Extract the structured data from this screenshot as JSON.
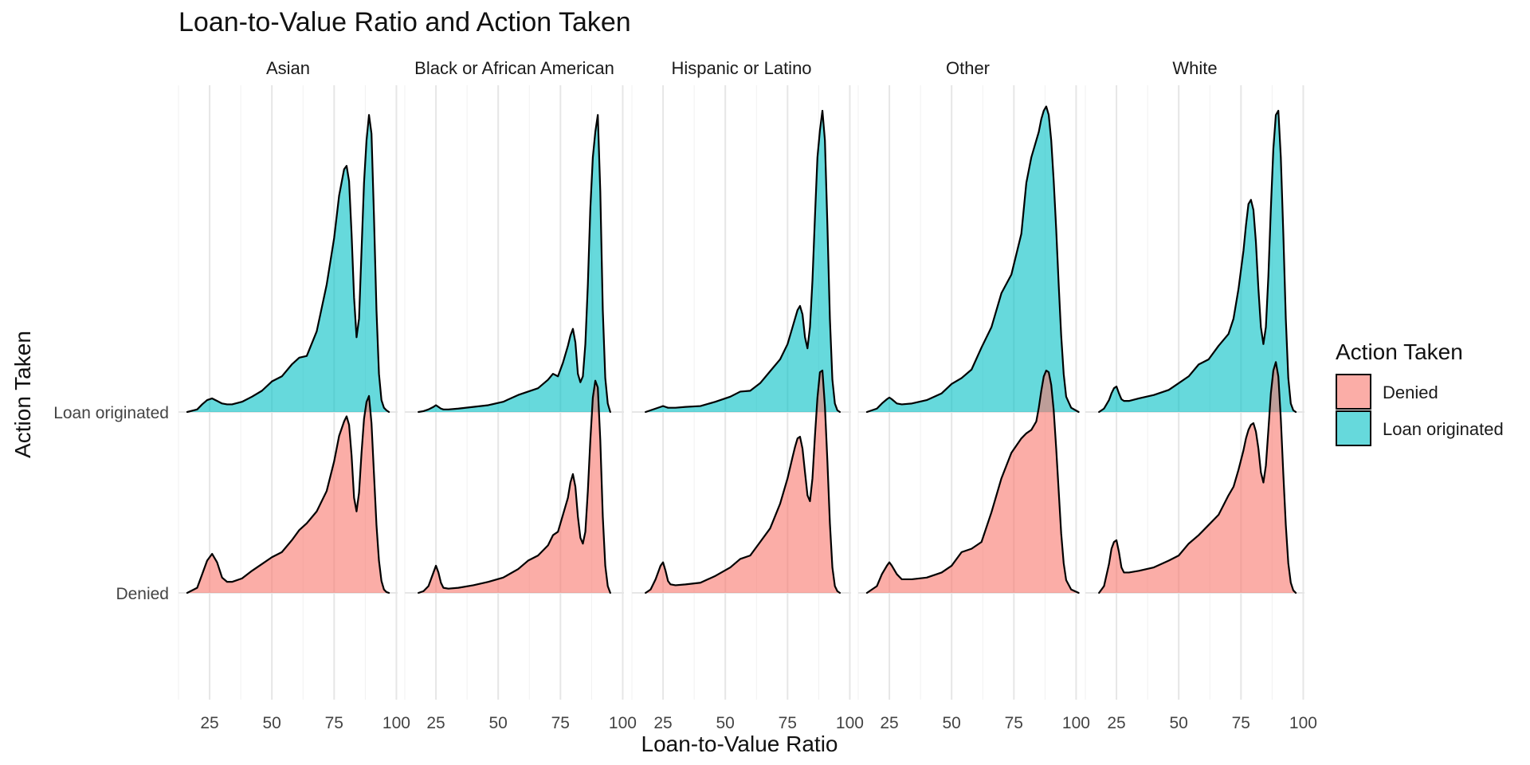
{
  "chart_data": {
    "type": "area",
    "title": "Loan-to-Value Ratio and Action Taken",
    "xlabel": "Loan-to-Value Ratio",
    "ylabel": "Action Taken",
    "x_ticks": [
      25,
      50,
      75,
      100
    ],
    "xlim": [
      12.5,
      100.5
    ],
    "y_categories": [
      "Denied",
      "Loan originated"
    ],
    "legend": {
      "title": "Action Taken",
      "position": "right",
      "entries": [
        {
          "name": "Denied",
          "color": "#F8766D"
        },
        {
          "name": "Loan originated",
          "color": "#00BFC4"
        }
      ]
    },
    "fill_alpha": 0.6,
    "grid": true,
    "facets": [
      {
        "name": "Asian",
        "series": [
          {
            "name": "Denied",
            "x": [
              16,
              20,
              22,
              24,
              26,
              28,
              30,
              32,
              34,
              38,
              42,
              46,
              50,
              54,
              58,
              61,
              64,
              68,
              72,
              75,
              77,
              79,
              80,
              81,
              82,
              83,
              84,
              85,
              86,
              87,
              88,
              89,
              90,
              91,
              92,
              93,
              94,
              95,
              96,
              97
            ],
            "y": [
              0,
              0.06,
              0.22,
              0.38,
              0.46,
              0.36,
              0.18,
              0.13,
              0.13,
              0.17,
              0.26,
              0.34,
              0.42,
              0.48,
              0.62,
              0.74,
              0.82,
              0.96,
              1.2,
              1.55,
              1.85,
              2.02,
              2.08,
              1.98,
              1.62,
              1.12,
              0.96,
              1.18,
              1.65,
              2.05,
              2.25,
              2.32,
              2.0,
              1.4,
              0.8,
              0.38,
              0.14,
              0.04,
              0.01,
              0
            ]
          },
          {
            "name": "Loan originated",
            "x": [
              16,
              20,
              22,
              24,
              26,
              28,
              30,
              32,
              34,
              38,
              42,
              46,
              50,
              54,
              58,
              61,
              64,
              68,
              72,
              75,
              77,
              79,
              80,
              81,
              82,
              83,
              84,
              85,
              86,
              87,
              88,
              89,
              90,
              91,
              92,
              93,
              94,
              95,
              96,
              97
            ],
            "y": [
              0,
              0.03,
              0.09,
              0.14,
              0.16,
              0.13,
              0.1,
              0.09,
              0.09,
              0.12,
              0.18,
              0.25,
              0.36,
              0.42,
              0.56,
              0.64,
              0.66,
              0.95,
              1.5,
              2.05,
              2.55,
              2.86,
              2.9,
              2.72,
              2.1,
              1.35,
              0.88,
              1.1,
              1.9,
              2.7,
              3.2,
              3.5,
              3.28,
              2.3,
              1.2,
              0.45,
              0.14,
              0.05,
              0.02,
              0
            ]
          }
        ]
      },
      {
        "name": "Black or African American",
        "series": [
          {
            "name": "Denied",
            "x": [
              18,
              20,
              22,
              24,
              25,
              26,
              27,
              28,
              30,
              34,
              40,
              46,
              52,
              58,
              62,
              66,
              70,
              72,
              74,
              76,
              78,
              79,
              80,
              81,
              82,
              83,
              84,
              85,
              86,
              87,
              88,
              89,
              90,
              91,
              92,
              93,
              94,
              95
            ],
            "y": [
              0,
              0.02,
              0.08,
              0.24,
              0.32,
              0.24,
              0.12,
              0.06,
              0.05,
              0.06,
              0.09,
              0.13,
              0.18,
              0.28,
              0.38,
              0.44,
              0.56,
              0.68,
              0.72,
              0.92,
              1.12,
              1.3,
              1.4,
              1.25,
              0.9,
              0.65,
              0.58,
              0.72,
              1.2,
              1.8,
              2.3,
              2.5,
              2.42,
              1.8,
              0.9,
              0.32,
              0.08,
              0
            ]
          },
          {
            "name": "Loan originated",
            "x": [
              18,
              20,
              22,
              24,
              25,
              26,
              27,
              28,
              30,
              34,
              40,
              46,
              52,
              58,
              62,
              66,
              70,
              72,
              74,
              76,
              78,
              79,
              80,
              81,
              82,
              83,
              84,
              85,
              86,
              87,
              88,
              89,
              90,
              91,
              92,
              93,
              94,
              95
            ],
            "y": [
              0,
              0.01,
              0.03,
              0.06,
              0.08,
              0.06,
              0.04,
              0.03,
              0.03,
              0.04,
              0.06,
              0.08,
              0.12,
              0.2,
              0.24,
              0.28,
              0.38,
              0.45,
              0.42,
              0.58,
              0.78,
              0.9,
              0.98,
              0.82,
              0.45,
              0.35,
              0.42,
              0.8,
              1.5,
              2.4,
              3.0,
              3.3,
              3.5,
              2.6,
              1.2,
              0.4,
              0.1,
              0
            ]
          }
        ]
      },
      {
        "name": "Hispanic or Latino",
        "series": [
          {
            "name": "Denied",
            "x": [
              18,
              20,
              22,
              24,
              25,
              26,
              27,
              28,
              30,
              34,
              40,
              46,
              52,
              56,
              60,
              64,
              68,
              72,
              75,
              77,
              78,
              79,
              80,
              81,
              82,
              83,
              84,
              85,
              86,
              87,
              88,
              89,
              90,
              91,
              92,
              93,
              94,
              95,
              96
            ],
            "y": [
              0,
              0.04,
              0.16,
              0.32,
              0.36,
              0.26,
              0.14,
              0.1,
              0.09,
              0.1,
              0.12,
              0.2,
              0.3,
              0.4,
              0.44,
              0.6,
              0.76,
              1.05,
              1.35,
              1.6,
              1.72,
              1.82,
              1.84,
              1.7,
              1.42,
              1.15,
              1.08,
              1.35,
              1.85,
              2.3,
              2.6,
              2.62,
              2.2,
              1.55,
              0.82,
              0.3,
              0.08,
              0.02,
              0
            ]
          },
          {
            "name": "Loan originated",
            "x": [
              18,
              20,
              22,
              24,
              25,
              26,
              27,
              28,
              30,
              34,
              40,
              46,
              52,
              56,
              60,
              64,
              68,
              72,
              75,
              77,
              78,
              79,
              80,
              81,
              82,
              83,
              84,
              85,
              86,
              87,
              88,
              89,
              90,
              91,
              92,
              93,
              94,
              95,
              96
            ],
            "y": [
              0,
              0.02,
              0.04,
              0.06,
              0.07,
              0.06,
              0.05,
              0.05,
              0.05,
              0.06,
              0.07,
              0.12,
              0.18,
              0.24,
              0.25,
              0.34,
              0.48,
              0.62,
              0.8,
              1.0,
              1.1,
              1.2,
              1.25,
              1.15,
              0.88,
              0.75,
              1.0,
              1.55,
              2.3,
              3.0,
              3.32,
              3.55,
              3.2,
              2.2,
              1.1,
              0.38,
              0.1,
              0.02,
              0
            ]
          }
        ]
      },
      {
        "name": "Other",
        "series": [
          {
            "name": "Denied",
            "x": [
              16,
              20,
              22,
              24,
              25,
              26,
              28,
              30,
              34,
              40,
              46,
              50,
              54,
              58,
              62,
              66,
              70,
              74,
              78,
              80,
              82,
              84,
              85,
              86,
              87,
              88,
              89,
              90,
              91,
              92,
              93,
              94,
              95,
              96,
              98,
              101
            ],
            "y": [
              0,
              0.08,
              0.22,
              0.32,
              0.36,
              0.32,
              0.22,
              0.16,
              0.16,
              0.18,
              0.24,
              0.32,
              0.48,
              0.52,
              0.6,
              0.95,
              1.35,
              1.65,
              1.82,
              1.88,
              1.92,
              2.02,
              2.18,
              2.38,
              2.55,
              2.62,
              2.6,
              2.45,
              2.15,
              1.7,
              1.2,
              0.7,
              0.35,
              0.15,
              0.04,
              0
            ]
          },
          {
            "name": "Loan originated",
            "x": [
              16,
              20,
              22,
              24,
              25,
              26,
              28,
              30,
              34,
              40,
              46,
              50,
              54,
              58,
              62,
              66,
              70,
              74,
              78,
              80,
              82,
              84,
              85,
              86,
              87,
              88,
              89,
              90,
              91,
              92,
              93,
              94,
              95,
              96,
              98,
              101
            ],
            "y": [
              0,
              0.04,
              0.1,
              0.15,
              0.17,
              0.15,
              0.1,
              0.09,
              0.1,
              0.14,
              0.22,
              0.33,
              0.4,
              0.5,
              0.76,
              1.0,
              1.4,
              1.62,
              2.1,
              2.7,
              3.0,
              3.2,
              3.3,
              3.45,
              3.55,
              3.6,
              3.5,
              3.2,
              2.72,
              2.15,
              1.5,
              0.9,
              0.45,
              0.18,
              0.05,
              0
            ]
          }
        ]
      },
      {
        "name": "White",
        "series": [
          {
            "name": "Denied",
            "x": [
              18,
              20,
              22,
              23,
              24,
              25,
              26,
              27,
              28,
              30,
              34,
              40,
              46,
              50,
              54,
              58,
              62,
              66,
              70,
              72,
              74,
              76,
              77,
              78,
              79,
              80,
              81,
              82,
              83,
              84,
              85,
              86,
              87,
              88,
              89,
              90,
              91,
              92,
              93,
              94,
              95,
              96,
              97
            ],
            "y": [
              0,
              0.08,
              0.34,
              0.52,
              0.6,
              0.62,
              0.48,
              0.3,
              0.24,
              0.24,
              0.26,
              0.3,
              0.38,
              0.44,
              0.58,
              0.68,
              0.8,
              0.92,
              1.15,
              1.25,
              1.45,
              1.68,
              1.82,
              1.92,
              1.98,
              2.0,
              1.9,
              1.7,
              1.42,
              1.3,
              1.5,
              1.92,
              2.35,
              2.62,
              2.72,
              2.55,
              2.05,
              1.4,
              0.8,
              0.35,
              0.12,
              0.03,
              0
            ]
          },
          {
            "name": "Loan originated",
            "x": [
              18,
              20,
              22,
              23,
              24,
              25,
              26,
              27,
              28,
              30,
              34,
              40,
              46,
              50,
              54,
              58,
              62,
              66,
              70,
              72,
              74,
              76,
              77,
              78,
              79,
              80,
              81,
              82,
              83,
              84,
              85,
              86,
              87,
              88,
              89,
              90,
              91,
              92,
              93,
              94,
              95,
              96,
              97
            ],
            "y": [
              0,
              0.04,
              0.14,
              0.22,
              0.28,
              0.3,
              0.22,
              0.15,
              0.13,
              0.13,
              0.16,
              0.2,
              0.26,
              0.34,
              0.42,
              0.56,
              0.62,
              0.78,
              0.92,
              1.1,
              1.45,
              1.9,
              2.2,
              2.45,
              2.5,
              2.38,
              2.0,
              1.45,
              1.0,
              0.8,
              1.0,
              1.6,
              2.4,
              3.1,
              3.5,
              3.55,
              3.0,
              2.1,
              1.1,
              0.4,
              0.1,
              0.02,
              0
            ]
          }
        ]
      }
    ]
  }
}
